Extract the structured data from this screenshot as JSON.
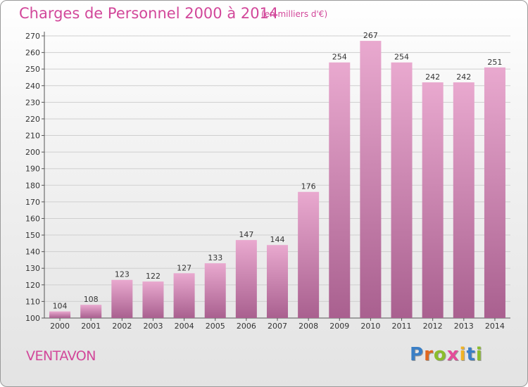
{
  "header": {
    "title": "Charges de Personnel 2000 à 2014",
    "subtitle": "(en milliers d'€)"
  },
  "footer": {
    "commune": "VENTAVON",
    "logo": "Proxiti"
  },
  "colors": {
    "title": "#d2479a",
    "bar_top": "#e9a9cf",
    "bar_bottom": "#a9608f",
    "logo_letters": [
      "#3a7fc6",
      "#e0671f",
      "#8bbd2c",
      "#e44b9a",
      "#f0b325",
      "#3a7fc6",
      "#8bbd2c"
    ]
  },
  "chart_data": {
    "type": "bar",
    "title": "Charges de Personnel 2000 à 2014",
    "subtitle": "(en milliers d'€)",
    "categories": [
      "2000",
      "2001",
      "2002",
      "2003",
      "2004",
      "2005",
      "2006",
      "2007",
      "2008",
      "2009",
      "2010",
      "2011",
      "2012",
      "2013",
      "2014"
    ],
    "values": [
      104,
      108,
      123,
      122,
      127,
      133,
      147,
      144,
      176,
      254,
      267,
      254,
      242,
      242,
      251
    ],
    "ylim": [
      100,
      270
    ],
    "yticks": [
      100,
      110,
      120,
      130,
      140,
      150,
      160,
      170,
      180,
      190,
      200,
      210,
      220,
      230,
      240,
      250,
      260,
      270
    ],
    "grid": true
  }
}
